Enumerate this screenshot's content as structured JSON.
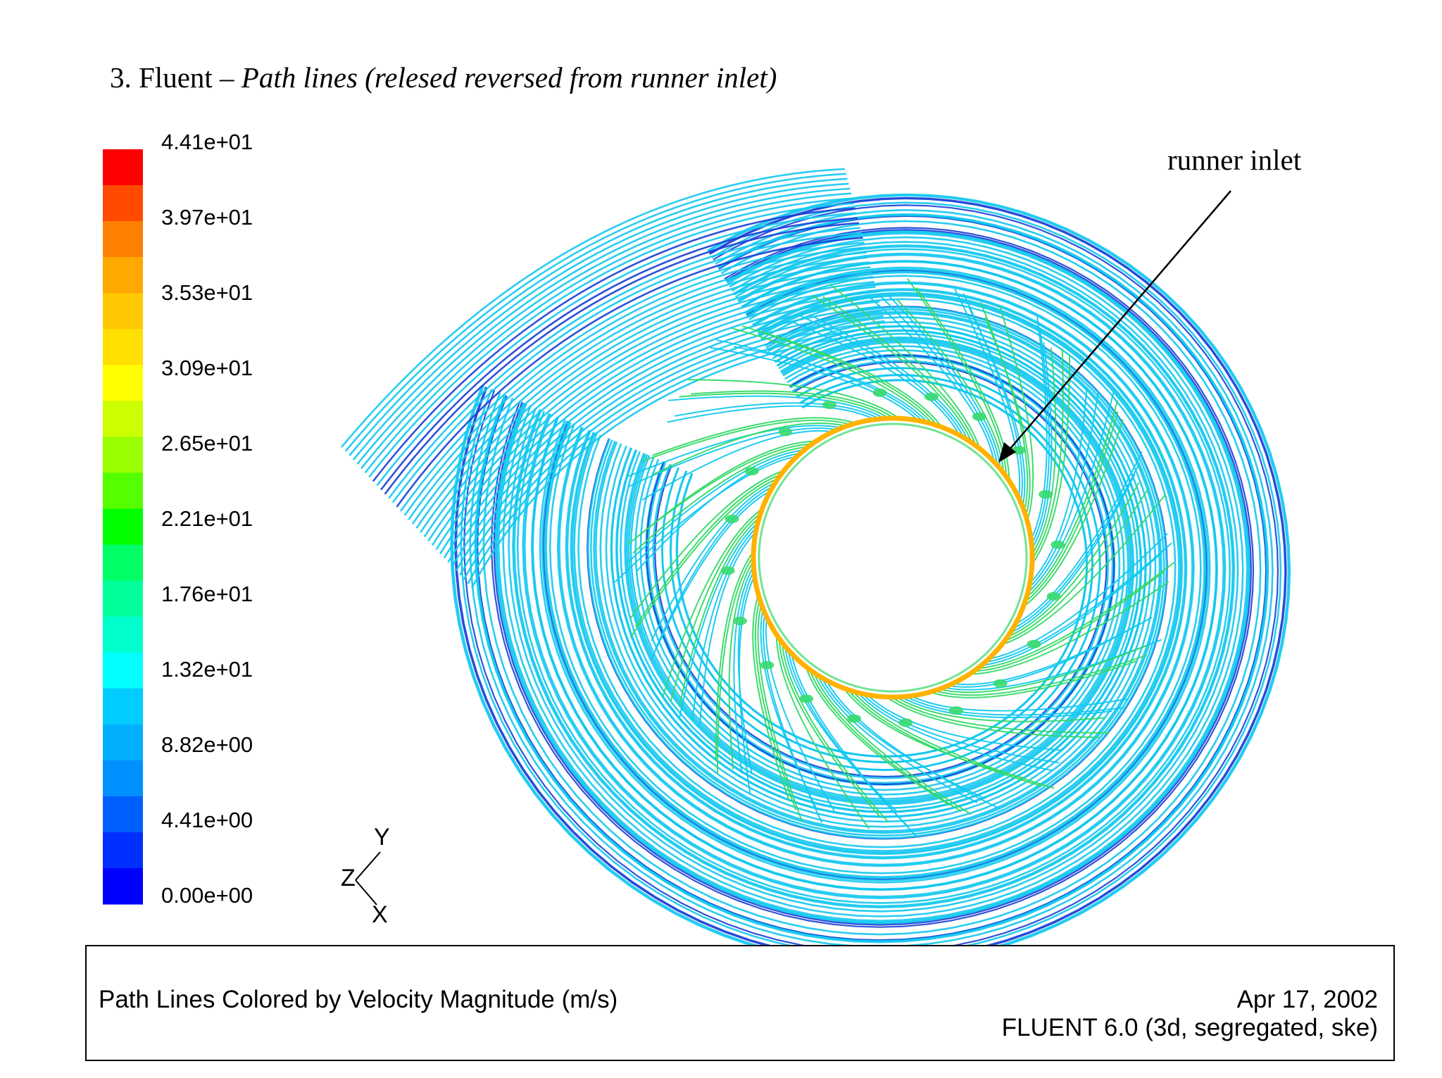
{
  "heading": {
    "prefix": "3. Fluent – ",
    "italic": "Path lines (relesed reversed from runner inlet)"
  },
  "color_scale": {
    "labels": [
      "4.41e+01",
      "3.97e+01",
      "3.53e+01",
      "3.09e+01",
      "2.65e+01",
      "2.21e+01",
      "1.76e+01",
      "1.32e+01",
      "8.82e+00",
      "4.41e+00",
      "0.00e+00"
    ],
    "colors": [
      "#ff0000",
      "#ff4a00",
      "#ff8000",
      "#ffa800",
      "#ffc800",
      "#ffe000",
      "#ffff00",
      "#ccff00",
      "#99ff00",
      "#55ff00",
      "#00ff00",
      "#00ff66",
      "#00ff99",
      "#00ffcc",
      "#00ffff",
      "#00ccff",
      "#00b0ff",
      "#0090ff",
      "#0060ff",
      "#0030ff",
      "#0000ff"
    ]
  },
  "axes_triad": {
    "y": "Y",
    "z": "Z",
    "x": "X"
  },
  "annotation": {
    "label": "runner inlet"
  },
  "footer": {
    "left": "Path Lines Colored by Velocity Magnitude (m/s)",
    "date": "Apr 17, 2002",
    "version": "FLUENT 6.0 (3d, segregated, ske)"
  },
  "plot_colors": {
    "spiral_main": "#12c8f0",
    "spiral_dark": "#1a3fd6",
    "guide_vane": "#33d966",
    "runner_ring": "#ffb300"
  }
}
